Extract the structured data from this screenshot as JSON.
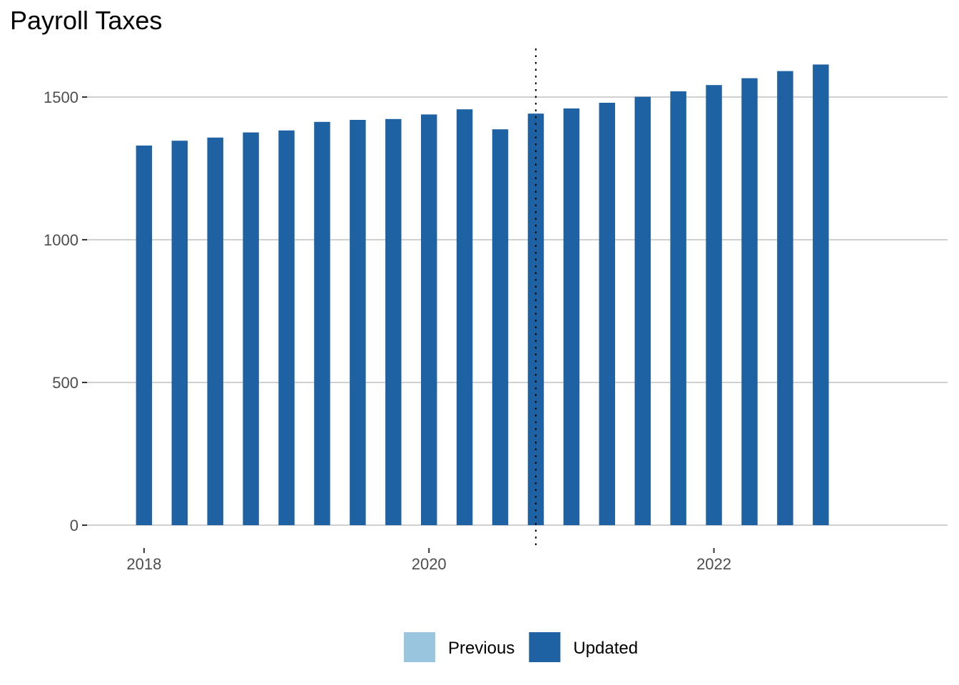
{
  "chart_data": {
    "type": "bar",
    "title": "Payroll Taxes",
    "xlabel": "",
    "ylabel": "",
    "x_ticks": [
      "2018",
      "2020",
      "2022"
    ],
    "y_ticks": [
      0,
      500,
      1000,
      1500
    ],
    "xlim": [
      2017.6,
      2023.64
    ],
    "ylim": [
      -80,
      1690
    ],
    "grid": "horizontal-major",
    "legend_position": "bottom",
    "forecast_start": "2020.75",
    "series": [
      {
        "name": "Previous",
        "color": "#9ac5df",
        "x": [],
        "values": []
      },
      {
        "name": "Updated",
        "color": "#1e62a4",
        "x": [
          2018.0,
          2018.25,
          2018.5,
          2018.75,
          2019.0,
          2019.25,
          2019.5,
          2019.75,
          2020.0,
          2020.25,
          2020.5,
          2020.75,
          2021.0,
          2021.25,
          2021.5,
          2021.75,
          2022.0,
          2022.25,
          2022.5,
          2022.75
        ],
        "values": [
          1330,
          1347,
          1358,
          1376,
          1383,
          1413,
          1420,
          1423,
          1439,
          1457,
          1387,
          1442,
          1460,
          1480,
          1501,
          1520,
          1542,
          1566,
          1591,
          1614
        ]
      }
    ]
  }
}
